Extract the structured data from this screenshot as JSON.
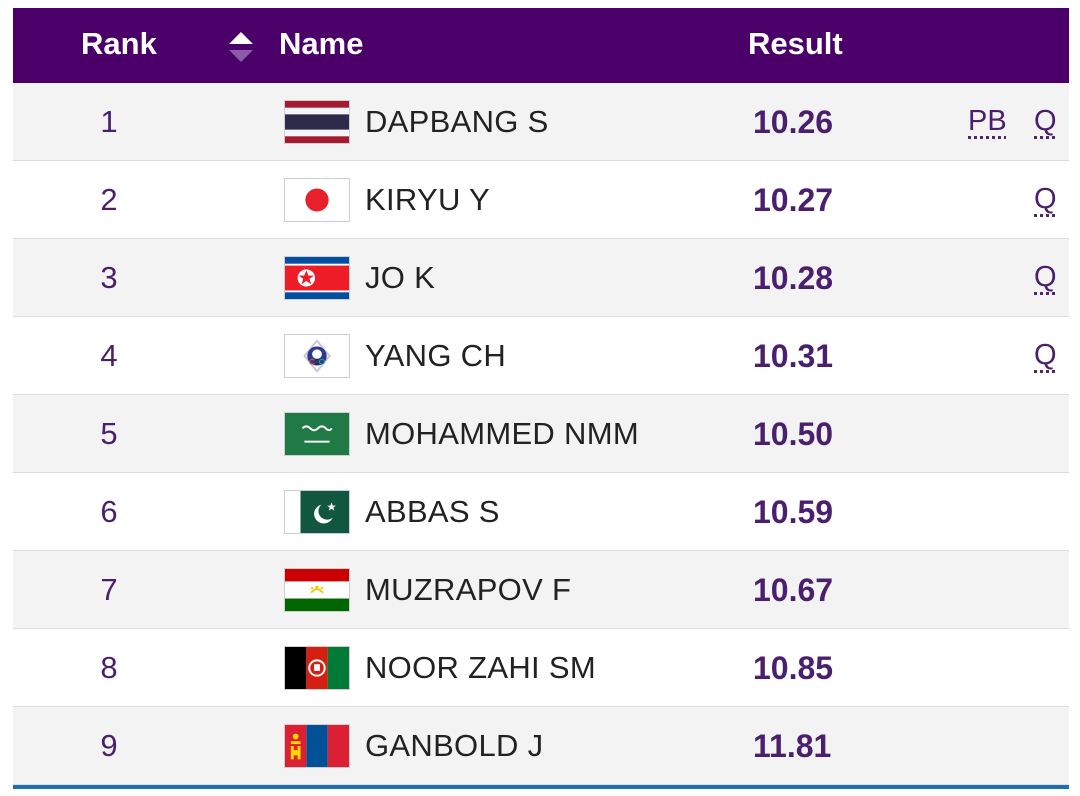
{
  "header": {
    "rank_label": "Rank",
    "name_label": "Name",
    "result_label": "Result",
    "sort_icon": "sort-up-down-icon"
  },
  "colors": {
    "header_bg": "#4a0068",
    "accent": "#4a1f6e",
    "bottom_rule": "#1f6fae"
  },
  "rows": [
    {
      "rank": "1",
      "name": "DAPBANG S",
      "result": "10.26",
      "pb": "PB",
      "q": "Q",
      "flag": "thailand-flag-icon"
    },
    {
      "rank": "2",
      "name": "KIRYU Y",
      "result": "10.27",
      "pb": "",
      "q": "Q",
      "flag": "japan-flag-icon"
    },
    {
      "rank": "3",
      "name": "JO K",
      "result": "10.28",
      "pb": "",
      "q": "Q",
      "flag": "north-korea-flag-icon"
    },
    {
      "rank": "4",
      "name": "YANG CH",
      "result": "10.31",
      "pb": "",
      "q": "Q",
      "flag": "chinese-taipei-flag-icon"
    },
    {
      "rank": "5",
      "name": "MOHAMMED NMM",
      "result": "10.50",
      "pb": "",
      "q": "",
      "flag": "saudi-arabia-flag-icon"
    },
    {
      "rank": "6",
      "name": "ABBAS S",
      "result": "10.59",
      "pb": "",
      "q": "",
      "flag": "pakistan-flag-icon"
    },
    {
      "rank": "7",
      "name": "MUZRAPOV F",
      "result": "10.67",
      "pb": "",
      "q": "",
      "flag": "tajikistan-flag-icon"
    },
    {
      "rank": "8",
      "name": "NOOR ZAHI SM",
      "result": "10.85",
      "pb": "",
      "q": "",
      "flag": "afghanistan-flag-icon"
    },
    {
      "rank": "9",
      "name": "GANBOLD J",
      "result": "11.81",
      "pb": "",
      "q": "",
      "flag": "mongolia-flag-icon"
    }
  ]
}
